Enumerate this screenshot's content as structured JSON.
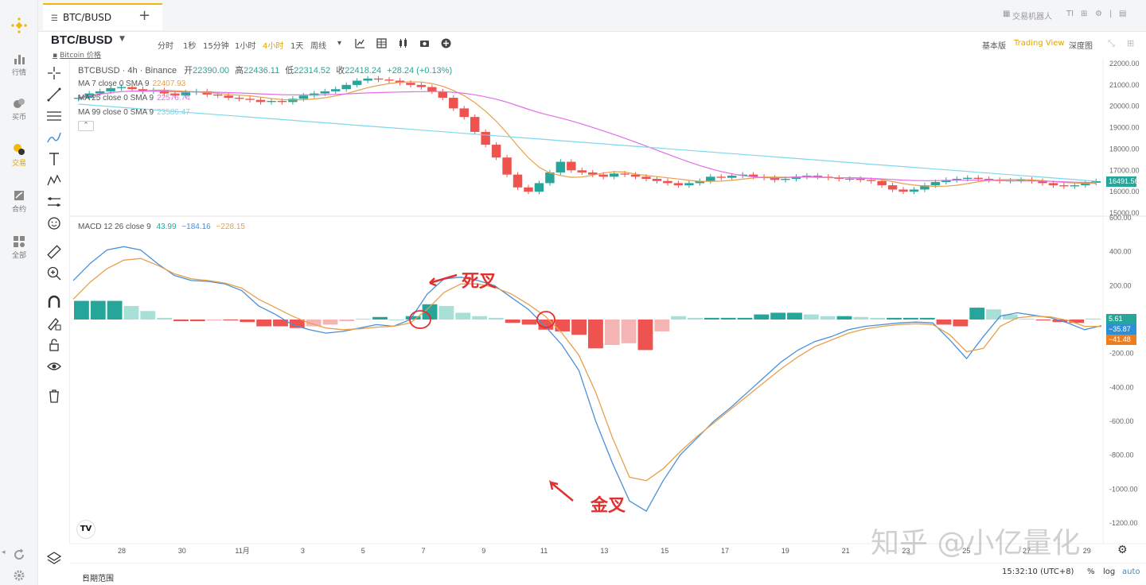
{
  "nav": [
    {
      "label": "行情",
      "icon": "bar-chart-icon"
    },
    {
      "label": "买币",
      "icon": "coins-icon"
    },
    {
      "label": "交易",
      "icon": "trade-icon",
      "active": true
    },
    {
      "label": "合约",
      "icon": "futures-icon"
    },
    {
      "label": "全部",
      "icon": "grid-icon"
    }
  ],
  "tab": {
    "label": "BTC/BUSD"
  },
  "top_tools": {
    "bot": "交易机器人"
  },
  "symbol": {
    "name": "BTC/BUSD",
    "sub": "Bitcoin 价格"
  },
  "intervals": [
    "分时",
    "1秒",
    "15分钟",
    "1小时",
    "4小时",
    "1天",
    "周线"
  ],
  "active_interval": "4小时",
  "views": [
    "基本版",
    "Trading View",
    "深度图"
  ],
  "active_view": "Trading View",
  "ohlc": {
    "pair": "BTCBUSD · 4h · Binance",
    "o_label": "开",
    "o": "22390.00",
    "h_label": "高",
    "h": "22436.11",
    "l_label": "低",
    "l": "22314.52",
    "c_label": "收",
    "c": "22418.24",
    "chg": "+28.24 (+0.13%)"
  },
  "ma": [
    {
      "label": "MA 7 close 0 SMA 9",
      "value": "22407.93",
      "color": "#e8a04b"
    },
    {
      "label": "MA 25 close 0 SMA 9",
      "value": "22576.74",
      "color": "#e26ee6"
    },
    {
      "label": "MA 99 close 0 SMA 9",
      "value": "23586.47",
      "color": "#7fd7ec"
    }
  ],
  "macd_legend": {
    "label": "MACD 12 26 close 9",
    "v1": "43.99",
    "v2": "−184.16",
    "v3": "−228.15"
  },
  "price_badge": "16491.56",
  "macd_badges": {
    "hist": "5.61",
    "macd": "−35.87",
    "signal": "−41.48"
  },
  "annotations": {
    "death": "死叉",
    "golden": "金叉"
  },
  "watermark": "知乎 @小亿量化",
  "footer": {
    "range": "日期范围",
    "time": "15:32:10 (UTC+8)",
    "pct": "%",
    "log": "log",
    "auto": "auto"
  },
  "colors": {
    "up": "#26a69a",
    "down": "#ef5350",
    "macd": "#4a90d9",
    "signal": "#e8a04b",
    "accent": "#f0b90b"
  },
  "chart_data": [
    {
      "type": "candlestick",
      "title": "BTCBUSD · 4h · Binance",
      "ylim": [
        15000,
        22000
      ],
      "y_ticks": [
        15000,
        16000,
        17000,
        18000,
        19000,
        20000,
        21000,
        22000
      ],
      "x_ticks": [
        "28",
        "30",
        "11月",
        "3",
        "5",
        "7",
        "9",
        "11",
        "13",
        "15",
        "17",
        "19",
        "21",
        "23",
        "25",
        "27",
        "29"
      ],
      "close_series": [
        20400,
        20600,
        20700,
        20850,
        20900,
        20800,
        20700,
        20750,
        20600,
        20500,
        20650,
        20700,
        20550,
        20500,
        20400,
        20350,
        20300,
        20200,
        20250,
        20200,
        20350,
        20500,
        20600,
        20700,
        20800,
        21000,
        21200,
        21300,
        21250,
        21200,
        21100,
        21000,
        20900,
        20700,
        20400,
        19900,
        19500,
        18800,
        18200,
        17600,
        16800,
        16200,
        16000,
        16400,
        16900,
        17400,
        17000,
        16900,
        16800,
        16700,
        16850,
        16800,
        16700,
        16600,
        16500,
        16400,
        16300,
        16400,
        16500,
        16700,
        16650,
        16750,
        16800,
        16700,
        16650,
        16550,
        16600,
        16700,
        16750,
        16700,
        16650,
        16600,
        16600,
        16550,
        16500,
        16300,
        16100,
        16000,
        16100,
        16300,
        16450,
        16550,
        16600,
        16650,
        16600,
        16550,
        16500,
        16520,
        16560,
        16500,
        16400,
        16300,
        16250,
        16300,
        16420,
        16491
      ],
      "series": [
        {
          "name": "MA 7",
          "color": "#e8a04b"
        },
        {
          "name": "MA 25",
          "color": "#e26ee6"
        },
        {
          "name": "MA 99",
          "color": "#7fd7ec"
        }
      ]
    },
    {
      "type": "line",
      "title": "MACD 12 26 close 9",
      "ylim": [
        -1200,
        600
      ],
      "y_ticks": [
        -1200,
        -1000,
        -800,
        -600,
        -400,
        -200,
        0,
        200,
        400,
        600
      ],
      "macd": [
        230,
        330,
        410,
        430,
        410,
        330,
        260,
        230,
        225,
        210,
        170,
        80,
        30,
        -30,
        -60,
        -80,
        -70,
        -50,
        -30,
        -40,
        0,
        150,
        240,
        250,
        230,
        200,
        130,
        60,
        -40,
        -150,
        -300,
        -600,
        -850,
        -1070,
        -1130,
        -950,
        -800,
        -700,
        -600,
        -520,
        -430,
        -340,
        -250,
        -180,
        -130,
        -100,
        -60,
        -40,
        -30,
        -20,
        -15,
        -20,
        -120,
        -230,
        -100,
        20,
        40,
        25,
        10,
        -20,
        -60,
        -35.87
      ],
      "signal": [
        120,
        220,
        300,
        350,
        360,
        320,
        270,
        240,
        230,
        215,
        185,
        120,
        70,
        20,
        -20,
        -50,
        -60,
        -55,
        -45,
        -40,
        -20,
        60,
        160,
        210,
        210,
        190,
        150,
        90,
        20,
        -80,
        -210,
        -430,
        -700,
        -930,
        -950,
        -880,
        -780,
        -690,
        -610,
        -530,
        -450,
        -370,
        -290,
        -220,
        -160,
        -120,
        -80,
        -55,
        -40,
        -30,
        -25,
        -30,
        -90,
        -190,
        -170,
        -40,
        10,
        20,
        15,
        -5,
        -40,
        -41.48
      ],
      "histogram": [
        110,
        110,
        110,
        80,
        50,
        10,
        -10,
        -10,
        -5,
        -5,
        -15,
        -40,
        -40,
        -50,
        -40,
        -30,
        -10,
        5,
        15,
        0,
        20,
        90,
        80,
        40,
        20,
        10,
        -20,
        -30,
        -60,
        -70,
        -90,
        -170,
        -150,
        -140,
        -180,
        -70,
        20,
        10,
        10,
        10,
        10,
        30,
        40,
        40,
        30,
        20,
        20,
        15,
        10,
        10,
        10,
        10,
        -30,
        -40,
        70,
        60,
        30,
        5,
        -5,
        -15,
        -20,
        5.61
      ],
      "annotations": [
        "死叉",
        "金叉"
      ]
    }
  ]
}
